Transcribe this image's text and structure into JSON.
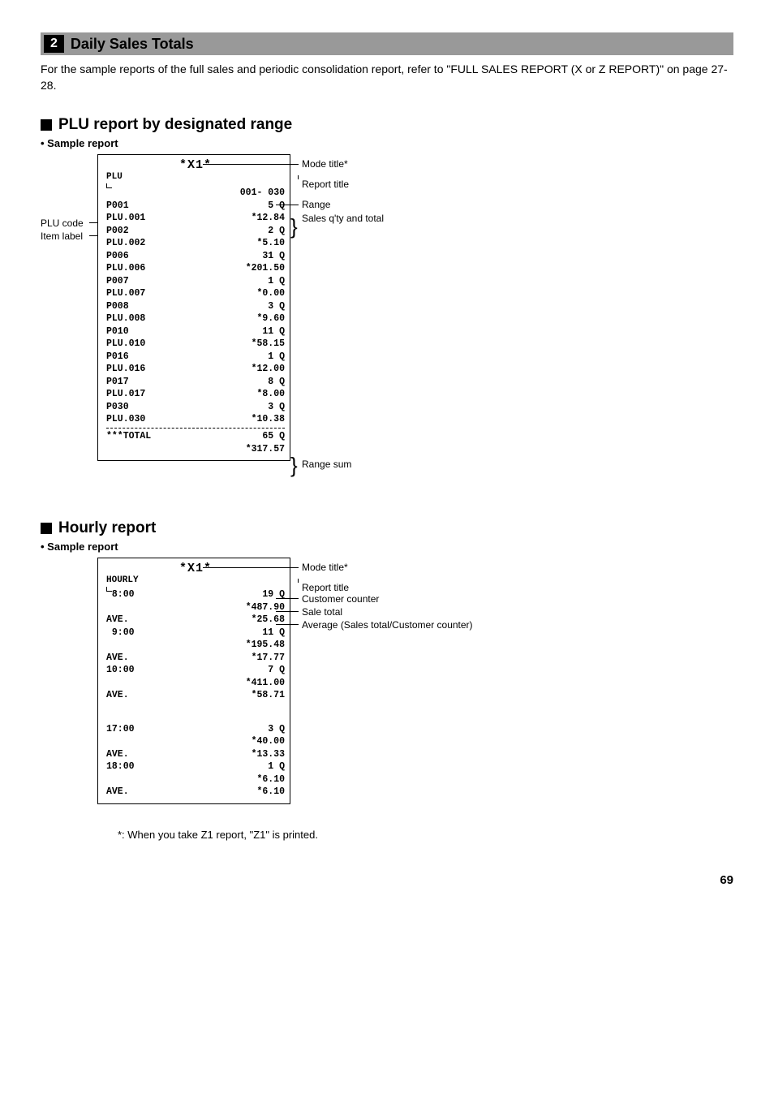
{
  "section": {
    "number": "2",
    "title": "Daily Sales Totals"
  },
  "intro": "For the sample reports of the full sales and periodic consolidation report, refer to \"FULL SALES REPORT (X or Z REPORT)\" on page 27-28.",
  "plu": {
    "heading": "PLU report by designated range",
    "sample_label": "• Sample report",
    "left_labels": {
      "code": "PLU code",
      "item": "Item label"
    },
    "receipt": {
      "mode_title": "*X1*",
      "report_title": "PLU",
      "range": "001- 030",
      "rows": [
        {
          "l": "P001",
          "r": "5 Q",
          "bold": true
        },
        {
          "l": "PLU.001",
          "r": "*12.84"
        },
        {
          "l": "P002",
          "r": "2 Q",
          "bold": true
        },
        {
          "l": "PLU.002",
          "r": "*5.10"
        },
        {
          "l": "P006",
          "r": "31 Q",
          "bold": true
        },
        {
          "l": "PLU.006",
          "r": "*201.50"
        },
        {
          "l": "P007",
          "r": "1 Q",
          "bold": true
        },
        {
          "l": "PLU.007",
          "r": "*0.00"
        },
        {
          "l": "P008",
          "r": "3 Q",
          "bold": true
        },
        {
          "l": "PLU.008",
          "r": "*9.60"
        },
        {
          "l": "P010",
          "r": "11 Q",
          "bold": true
        },
        {
          "l": "PLU.010",
          "r": "*58.15"
        },
        {
          "l": "P016",
          "r": "1 Q",
          "bold": true
        },
        {
          "l": "PLU.016",
          "r": "*12.00"
        },
        {
          "l": "P017",
          "r": "8 Q",
          "bold": true
        },
        {
          "l": "PLU.017",
          "r": "*8.00"
        },
        {
          "l": "P030",
          "r": "3 Q",
          "bold": true
        },
        {
          "l": "PLU.030",
          "r": "*10.38"
        }
      ],
      "total": {
        "l": "***TOTAL",
        "q": "65 Q",
        "amt": "*317.57"
      }
    },
    "right_labels": {
      "mode": "Mode title*",
      "report": "Report title",
      "range": "Range",
      "sales": "Sales q'ty and total",
      "sum": "Range sum"
    }
  },
  "hourly": {
    "heading": "Hourly report",
    "sample_label": "• Sample report",
    "receipt": {
      "mode_title": "*X1*",
      "report_title": "HOURLY",
      "rows1": [
        {
          "l": " 8:00",
          "r": "19 Q"
        },
        {
          "l": "",
          "r": "*487.90"
        },
        {
          "l": "AVE.",
          "r": "*25.68"
        },
        {
          "l": " 9:00",
          "r": "11 Q"
        },
        {
          "l": "",
          "r": "*195.48"
        },
        {
          "l": "AVE.",
          "r": "*17.77"
        },
        {
          "l": "10:00",
          "r": "7 Q"
        },
        {
          "l": "",
          "r": "*411.00"
        },
        {
          "l": "AVE.",
          "r": "*58.71"
        }
      ],
      "rows2": [
        {
          "l": "17:00",
          "r": "3 Q"
        },
        {
          "l": "",
          "r": "*40.00"
        },
        {
          "l": "AVE.",
          "r": "*13.33"
        },
        {
          "l": "18:00",
          "r": "1 Q"
        },
        {
          "l": "",
          "r": "*6.10"
        },
        {
          "l": "AVE.",
          "r": "*6.10"
        }
      ]
    },
    "right_labels": {
      "mode": "Mode title*",
      "report": "Report title",
      "customer": "Customer counter",
      "sale": "Sale total",
      "avg": "Average (Sales total/Customer counter)"
    }
  },
  "footnote": "*: When you take Z1 report, \"Z1\" is printed.",
  "page_number": "69"
}
